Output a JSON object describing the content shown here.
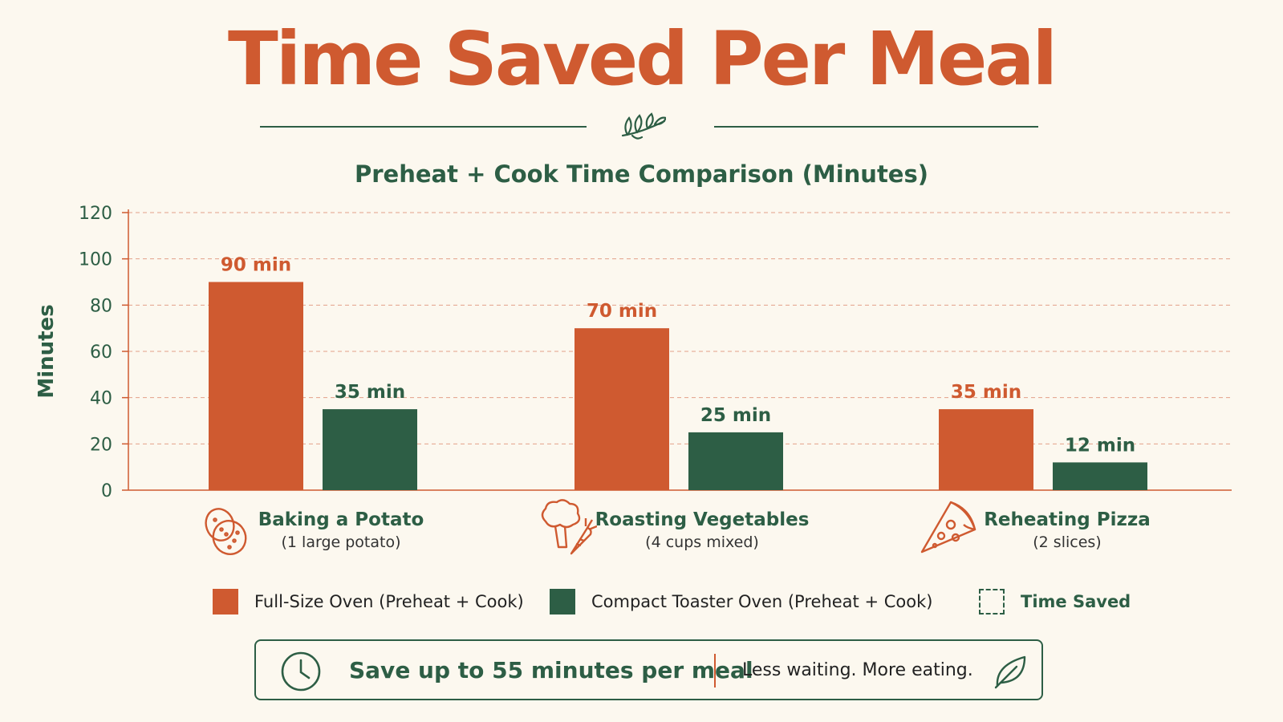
{
  "title": "Time Saved Per Meal",
  "subtitle": "Preheat + Cook Time Comparison (Minutes)",
  "colors": {
    "full_size": "#cf5a30",
    "compact": "#2d5e45",
    "background": "#fcf8ef"
  },
  "chart_data": {
    "type": "bar",
    "categories": [
      "Baking a Potato",
      "Roasting Vegetables",
      "Reheating Pizza"
    ],
    "category_notes": [
      "(1 large potato)",
      "(4 cups mixed)",
      "(2 slices)"
    ],
    "category_icons": [
      "potato-icon",
      "vegetables-icon",
      "pizza-icon"
    ],
    "series": [
      {
        "name": "Full-Size Oven (Preheat + Cook)",
        "values": [
          90,
          70,
          35
        ],
        "labels": [
          "90 min",
          "70 min",
          "35 min"
        ]
      },
      {
        "name": "Compact Toaster Oven (Preheat + Cook)",
        "values": [
          35,
          25,
          12
        ],
        "labels": [
          "35 min",
          "25 min",
          "12 min"
        ]
      }
    ],
    "ylabel": "Minutes",
    "ylim": [
      0,
      120
    ],
    "yticks": [
      0,
      20,
      40,
      60,
      80,
      100,
      120
    ],
    "grid": true,
    "legend_position": "bottom"
  },
  "legend": {
    "full_size": "Full-Size Oven (Preheat + Cook)",
    "compact": "Compact Toaster Oven (Preheat + Cook)",
    "saved": "Time Saved"
  },
  "banner": {
    "headline": "Save up to 55 minutes per meal",
    "tagline": "Less waiting. More eating.",
    "icons": [
      "clock-icon",
      "leaf-icon"
    ]
  }
}
